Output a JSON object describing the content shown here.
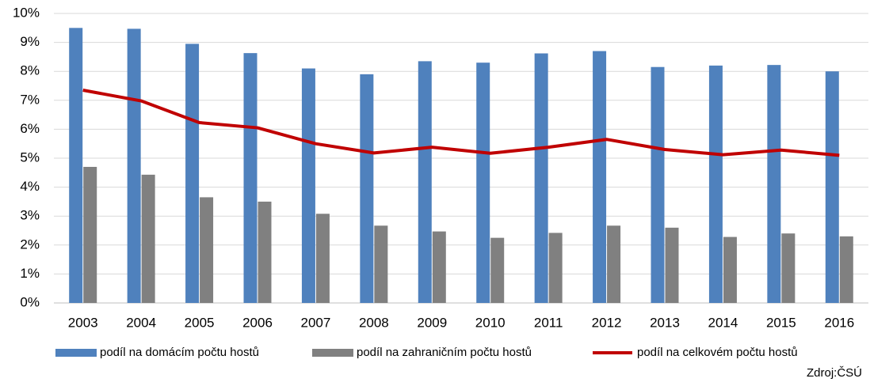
{
  "chart_data": {
    "type": "bar",
    "categories": [
      "2003",
      "2004",
      "2005",
      "2006",
      "2007",
      "2008",
      "2009",
      "2010",
      "2011",
      "2012",
      "2013",
      "2014",
      "2015",
      "2016"
    ],
    "series": [
      {
        "name": "podíl na domácím počtu hostů",
        "type": "bar",
        "color": "#4f81bd",
        "values": [
          9.5,
          9.47,
          8.95,
          8.63,
          8.1,
          7.9,
          8.35,
          8.3,
          8.62,
          8.7,
          8.15,
          8.2,
          8.22,
          8.0
        ]
      },
      {
        "name": "podíl na zahraničním počtu hostů",
        "type": "bar",
        "color": "#808080",
        "values": [
          4.7,
          4.43,
          3.65,
          3.5,
          3.08,
          2.67,
          2.47,
          2.25,
          2.42,
          2.67,
          2.6,
          2.28,
          2.4,
          2.3
        ]
      },
      {
        "name": "podíl na celkovém počtu hostů",
        "type": "line",
        "color": "#c00000",
        "values": [
          7.35,
          6.98,
          6.23,
          6.05,
          5.5,
          5.18,
          5.38,
          5.17,
          5.38,
          5.65,
          5.3,
          5.12,
          5.28,
          5.1
        ]
      }
    ],
    "ylim": [
      0,
      10
    ],
    "yticks": [
      {
        "value": 0,
        "label": "0%"
      },
      {
        "value": 1,
        "label": "1%"
      },
      {
        "value": 2,
        "label": "2%"
      },
      {
        "value": 3,
        "label": "3%"
      },
      {
        "value": 4,
        "label": "4%"
      },
      {
        "value": 5,
        "label": "5%"
      },
      {
        "value": 6,
        "label": "6%"
      },
      {
        "value": 7,
        "label": "7%"
      },
      {
        "value": 8,
        "label": "8%"
      },
      {
        "value": 9,
        "label": "9%"
      },
      {
        "value": 10,
        "label": "10%"
      }
    ],
    "grid": true,
    "legend": "bottom",
    "source": "Zdroj:ČSÚ"
  }
}
